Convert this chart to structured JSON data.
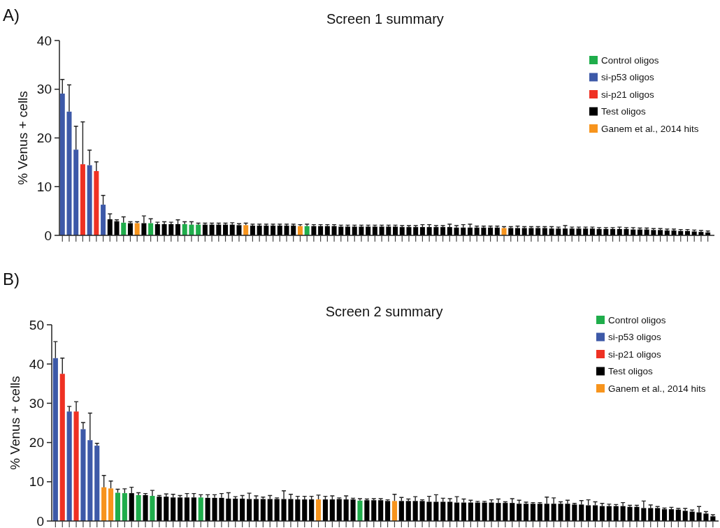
{
  "chart_data": [
    {
      "type": "bar",
      "title": "Screen 1 summary",
      "ylabel": "% Venus + cells",
      "annotations": [
        "A)"
      ],
      "legend": "top right",
      "ylim": [
        0,
        40
      ],
      "yticks": [
        0,
        10,
        20,
        30,
        40
      ],
      "categories": [
        null,
        null,
        null,
        null,
        null,
        null,
        null,
        null,
        null,
        null,
        null,
        null,
        null,
        null,
        null,
        null,
        null,
        null,
        null,
        null,
        null,
        null,
        null,
        null,
        null,
        null,
        null,
        null,
        null,
        null,
        null,
        null,
        null,
        null,
        null,
        null,
        null,
        null,
        null,
        null,
        null,
        null,
        null,
        null,
        null,
        null,
        null,
        null,
        null,
        null,
        null,
        null,
        null,
        null,
        null,
        null,
        null,
        null,
        null,
        null,
        null,
        null,
        null,
        null,
        null,
        null,
        null,
        null,
        null,
        null,
        null,
        null,
        null,
        null,
        null,
        null,
        null,
        null,
        null,
        null,
        null,
        null,
        null,
        null,
        null,
        null,
        null,
        null,
        null,
        null,
        null,
        null,
        null,
        null,
        null,
        null
      ],
      "series": [
        {
          "name": "Control oligos",
          "color": "#1fad4b",
          "values": [
            null,
            null,
            null,
            null,
            null,
            null,
            null,
            null,
            null,
            2.6,
            null,
            null,
            null,
            2.5,
            null,
            null,
            null,
            null,
            2.3,
            2.2,
            2.2,
            null,
            null,
            null,
            null,
            null,
            null,
            null,
            null,
            null,
            null,
            null,
            null,
            null,
            null,
            null,
            1.9,
            null,
            null,
            null,
            null,
            null,
            null,
            null,
            null,
            null,
            null,
            null,
            null,
            null,
            null,
            null,
            null,
            null,
            null,
            null,
            null,
            null,
            null,
            null,
            null,
            null,
            null,
            null,
            null,
            null,
            null,
            null,
            null,
            null,
            null,
            null,
            null,
            null,
            null,
            null,
            null,
            null,
            null,
            null,
            null,
            null,
            null,
            null,
            null,
            null,
            null,
            null,
            null,
            null,
            null,
            null,
            null,
            null,
            null,
            null
          ],
          "errors": [
            null,
            null,
            null,
            null,
            null,
            null,
            null,
            null,
            null,
            1.2,
            null,
            null,
            null,
            0.9,
            null,
            null,
            null,
            null,
            0.5,
            0.6,
            0.3,
            null,
            null,
            null,
            null,
            null,
            null,
            null,
            null,
            null,
            null,
            null,
            null,
            null,
            null,
            null,
            0.4,
            null,
            null,
            null,
            null,
            null,
            null,
            null,
            null,
            null,
            null,
            null,
            null,
            null,
            null,
            null,
            null,
            null,
            null,
            null,
            null,
            null,
            null,
            null,
            null,
            null,
            null,
            null,
            null,
            null,
            null,
            null,
            null,
            null,
            null,
            null,
            null,
            null,
            null,
            null,
            null,
            null,
            null,
            null,
            null,
            null,
            null,
            null,
            null,
            null,
            null,
            null,
            null,
            null,
            null,
            null,
            null,
            null,
            null,
            null
          ]
        },
        {
          "name": "si-p53 oligos",
          "color": "#3d59a8",
          "values": [
            29.1,
            25.4,
            17.6,
            null,
            14.4,
            null,
            6.3,
            null,
            null,
            null,
            null,
            null,
            null,
            null,
            null,
            null,
            null,
            null,
            null,
            null,
            null,
            null,
            null,
            null,
            null,
            null,
            null,
            null,
            null,
            null,
            null,
            null,
            null,
            null,
            null,
            null,
            null,
            null,
            null,
            null,
            null,
            null,
            null,
            null,
            null,
            null,
            null,
            null,
            null,
            null,
            null,
            null,
            null,
            null,
            null,
            null,
            null,
            null,
            null,
            null,
            null,
            null,
            null,
            null,
            null,
            null,
            null,
            null,
            null,
            null,
            null,
            null,
            null,
            null,
            null,
            null,
            null,
            null,
            null,
            null,
            null,
            null,
            null,
            null,
            null,
            null,
            null,
            null,
            null,
            null,
            null,
            null,
            null,
            null,
            null,
            null
          ],
          "errors": [
            2.9,
            5.5,
            4.8,
            null,
            3.1,
            null,
            1.9,
            null,
            null,
            null,
            null,
            null,
            null,
            null,
            null,
            null,
            null,
            null,
            null,
            null,
            null,
            null,
            null,
            null,
            null,
            null,
            null,
            null,
            null,
            null,
            null,
            null,
            null,
            null,
            null,
            null,
            null,
            null,
            null,
            null,
            null,
            null,
            null,
            null,
            null,
            null,
            null,
            null,
            null,
            null,
            null,
            null,
            null,
            null,
            null,
            null,
            null,
            null,
            null,
            null,
            null,
            null,
            null,
            null,
            null,
            null,
            null,
            null,
            null,
            null,
            null,
            null,
            null,
            null,
            null,
            null,
            null,
            null,
            null,
            null,
            null,
            null,
            null,
            null,
            null,
            null,
            null,
            null,
            null,
            null,
            null,
            null,
            null,
            null,
            null,
            null
          ]
        },
        {
          "name": "si-p21 oligos",
          "color": "#ef3123",
          "values": [
            null,
            null,
            null,
            14.6,
            null,
            13.2,
            null,
            null,
            null,
            null,
            null,
            null,
            null,
            null,
            null,
            null,
            null,
            null,
            null,
            null,
            null,
            null,
            null,
            null,
            null,
            null,
            null,
            null,
            null,
            null,
            null,
            null,
            null,
            null,
            null,
            null,
            null,
            null,
            null,
            null,
            null,
            null,
            null,
            null,
            null,
            null,
            null,
            null,
            null,
            null,
            null,
            null,
            null,
            null,
            null,
            null,
            null,
            null,
            null,
            null,
            null,
            null,
            null,
            null,
            null,
            null,
            null,
            null,
            null,
            null,
            null,
            null,
            null,
            null,
            null,
            null,
            null,
            null,
            null,
            null,
            null,
            null,
            null,
            null,
            null,
            null,
            null,
            null,
            null,
            null,
            null,
            null,
            null,
            null,
            null,
            null
          ],
          "errors": [
            null,
            null,
            null,
            8.7,
            null,
            1.9,
            null,
            null,
            null,
            null,
            null,
            null,
            null,
            null,
            null,
            null,
            null,
            null,
            null,
            null,
            null,
            null,
            null,
            null,
            null,
            null,
            null,
            null,
            null,
            null,
            null,
            null,
            null,
            null,
            null,
            null,
            null,
            null,
            null,
            null,
            null,
            null,
            null,
            null,
            null,
            null,
            null,
            null,
            null,
            null,
            null,
            null,
            null,
            null,
            null,
            null,
            null,
            null,
            null,
            null,
            null,
            null,
            null,
            null,
            null,
            null,
            null,
            null,
            null,
            null,
            null,
            null,
            null,
            null,
            null,
            null,
            null,
            null,
            null,
            null,
            null,
            null,
            null,
            null,
            null,
            null,
            null,
            null,
            null,
            null,
            null,
            null,
            null,
            null,
            null,
            null
          ]
        },
        {
          "name": "Test oligos",
          "color": "#000000",
          "values": [
            null,
            null,
            null,
            null,
            null,
            null,
            null,
            3.3,
            2.9,
            null,
            2.5,
            null,
            2.5,
            null,
            2.3,
            2.3,
            2.3,
            2.3,
            null,
            null,
            null,
            2.2,
            2.2,
            2.2,
            2.2,
            2.2,
            2.1,
            null,
            2.0,
            2.0,
            2.0,
            2.0,
            2.0,
            2.0,
            2.0,
            null,
            null,
            1.9,
            1.9,
            1.9,
            1.9,
            1.8,
            1.8,
            1.8,
            1.8,
            1.8,
            1.8,
            1.8,
            1.8,
            1.8,
            1.7,
            1.7,
            1.7,
            1.7,
            1.7,
            1.7,
            1.7,
            1.7,
            1.6,
            1.6,
            1.6,
            1.6,
            1.6,
            1.6,
            1.6,
            null,
            1.5,
            1.5,
            1.5,
            1.5,
            1.5,
            1.5,
            1.4,
            1.4,
            1.4,
            1.4,
            1.4,
            1.4,
            1.4,
            1.3,
            1.3,
            1.3,
            1.3,
            1.3,
            1.2,
            1.2,
            1.2,
            1.1,
            1.1,
            1.0,
            1.0,
            0.9,
            0.9,
            0.8,
            0.7,
            0.6
          ],
          "errors": [
            null,
            null,
            null,
            null,
            null,
            null,
            null,
            1.1,
            0.3,
            null,
            0.3,
            null,
            1.5,
            null,
            0.4,
            0.5,
            0.4,
            0.9,
            null,
            null,
            null,
            0.3,
            0.3,
            0.3,
            0.3,
            0.4,
            0.3,
            null,
            0.3,
            0.3,
            0.3,
            0.3,
            0.3,
            0.3,
            0.3,
            null,
            null,
            0.3,
            0.3,
            0.3,
            0.3,
            0.3,
            0.3,
            0.3,
            0.3,
            0.3,
            0.3,
            0.3,
            0.3,
            0.3,
            0.3,
            0.3,
            0.3,
            0.5,
            0.5,
            0.3,
            0.3,
            0.6,
            0.4,
            0.6,
            0.7,
            0.3,
            0.3,
            0.3,
            0.3,
            null,
            0.3,
            0.4,
            0.3,
            0.3,
            0.3,
            0.3,
            0.4,
            0.3,
            0.6,
            0.3,
            0.3,
            0.3,
            0.3,
            0.3,
            0.3,
            0.3,
            0.4,
            0.3,
            0.4,
            0.3,
            0.3,
            0.3,
            0.3,
            0.3,
            0.3,
            0.3,
            0.3,
            0.3,
            0.3,
            0.3
          ]
        },
        {
          "name": "Ganem et al., 2014 hits",
          "color": "#f7941d",
          "values": [
            null,
            null,
            null,
            null,
            null,
            null,
            null,
            null,
            null,
            null,
            null,
            2.5,
            null,
            null,
            null,
            null,
            null,
            null,
            null,
            null,
            null,
            null,
            null,
            null,
            null,
            null,
            null,
            2.1,
            null,
            null,
            null,
            null,
            null,
            null,
            null,
            1.9,
            null,
            null,
            null,
            null,
            null,
            null,
            null,
            null,
            null,
            null,
            null,
            null,
            null,
            null,
            null,
            null,
            null,
            null,
            null,
            null,
            null,
            null,
            null,
            null,
            null,
            null,
            null,
            null,
            null,
            1.5,
            null,
            null,
            null,
            null,
            null,
            null,
            null,
            null,
            null,
            null,
            null,
            null,
            null,
            null,
            null,
            null,
            null,
            null,
            null,
            null,
            null,
            null,
            null,
            null,
            null,
            null,
            null,
            null,
            null,
            null
          ],
          "errors": [
            null,
            null,
            null,
            null,
            null,
            null,
            null,
            null,
            null,
            null,
            null,
            0.3,
            null,
            null,
            null,
            null,
            null,
            null,
            null,
            null,
            null,
            null,
            null,
            null,
            null,
            null,
            null,
            0.4,
            null,
            null,
            null,
            null,
            null,
            null,
            null,
            0.3,
            null,
            null,
            null,
            null,
            null,
            null,
            null,
            null,
            null,
            null,
            null,
            null,
            null,
            null,
            null,
            null,
            null,
            null,
            null,
            null,
            null,
            null,
            null,
            null,
            null,
            null,
            null,
            null,
            null,
            0.3,
            null,
            null,
            null,
            null,
            null,
            null,
            null,
            null,
            null,
            null,
            null,
            null,
            null,
            null,
            null,
            null,
            null,
            null,
            null,
            null,
            null,
            null,
            null,
            null,
            null,
            null,
            null,
            null,
            null,
            null
          ]
        }
      ]
    },
    {
      "type": "bar",
      "title": "Screen 2 summary",
      "ylabel": "% Venus + cells",
      "annotations": [
        "B)"
      ],
      "legend": "top right",
      "ylim": [
        0,
        50
      ],
      "yticks": [
        0,
        10,
        20,
        30,
        40,
        50
      ],
      "categories": [
        null,
        null,
        null,
        null,
        null,
        null,
        null,
        null,
        null,
        null,
        null,
        null,
        null,
        null,
        null,
        null,
        null,
        null,
        null,
        null,
        null,
        null,
        null,
        null,
        null,
        null,
        null,
        null,
        null,
        null,
        null,
        null,
        null,
        null,
        null,
        null,
        null,
        null,
        null,
        null,
        null,
        null,
        null,
        null,
        null,
        null,
        null,
        null,
        null,
        null,
        null,
        null,
        null,
        null,
        null,
        null,
        null,
        null,
        null,
        null,
        null,
        null,
        null,
        null,
        null,
        null,
        null,
        null,
        null,
        null,
        null,
        null,
        null,
        null,
        null,
        null,
        null,
        null,
        null,
        null,
        null,
        null,
        null,
        null,
        null,
        null,
        null,
        null,
        null,
        null,
        null,
        null,
        null,
        null,
        null,
        null
      ],
      "series": [
        {
          "name": "Control oligos",
          "color": "#1fad4b",
          "values": [
            null,
            null,
            null,
            null,
            null,
            null,
            null,
            null,
            null,
            7.2,
            7.1,
            null,
            6.6,
            null,
            6.4,
            null,
            null,
            null,
            null,
            null,
            null,
            6.0,
            null,
            null,
            null,
            null,
            null,
            null,
            null,
            null,
            null,
            null,
            null,
            null,
            null,
            null,
            null,
            null,
            null,
            null,
            null,
            null,
            null,
            null,
            5.2,
            null,
            null,
            null,
            null,
            null,
            null,
            null,
            null,
            null,
            null,
            null,
            null,
            null,
            null,
            null,
            null,
            null,
            null,
            null,
            null,
            null,
            null,
            null,
            null,
            null,
            null,
            null,
            null,
            null,
            null,
            null,
            null,
            null,
            null,
            null,
            null,
            null,
            null,
            null,
            null,
            null,
            null,
            null,
            null,
            null,
            null,
            null,
            null,
            null,
            null,
            null
          ],
          "errors": [
            null,
            null,
            null,
            null,
            null,
            null,
            null,
            null,
            null,
            0.9,
            1.1,
            null,
            0.6,
            null,
            1.4,
            null,
            null,
            null,
            null,
            null,
            null,
            0.7,
            null,
            null,
            null,
            null,
            null,
            null,
            null,
            null,
            null,
            null,
            null,
            null,
            null,
            null,
            null,
            null,
            null,
            null,
            null,
            null,
            null,
            null,
            0.5,
            null,
            null,
            null,
            null,
            null,
            null,
            null,
            null,
            null,
            null,
            null,
            null,
            null,
            null,
            null,
            null,
            null,
            null,
            null,
            null,
            null,
            null,
            null,
            null,
            null,
            null,
            null,
            null,
            null,
            null,
            null,
            null,
            null,
            null,
            null,
            null,
            null,
            null,
            null,
            null,
            null,
            null,
            null,
            null,
            null,
            null,
            null,
            null,
            null,
            null,
            null
          ]
        },
        {
          "name": "si-p53 oligos",
          "color": "#3d59a8",
          "values": [
            41.5,
            null,
            27.9,
            null,
            23.4,
            20.6,
            19.2,
            null,
            null,
            null,
            null,
            null,
            null,
            null,
            null,
            null,
            null,
            null,
            null,
            null,
            null,
            null,
            null,
            null,
            null,
            null,
            null,
            null,
            null,
            null,
            null,
            null,
            null,
            null,
            null,
            null,
            null,
            null,
            null,
            null,
            null,
            null,
            null,
            null,
            null,
            null,
            null,
            null,
            null,
            null,
            null,
            null,
            null,
            null,
            null,
            null,
            null,
            null,
            null,
            null,
            null,
            null,
            null,
            null,
            null,
            null,
            null,
            null,
            null,
            null,
            null,
            null,
            null,
            null,
            null,
            null,
            null,
            null,
            null,
            null,
            null,
            null,
            null,
            null,
            null,
            null,
            null,
            null,
            null,
            null,
            null,
            null,
            null,
            null,
            null,
            null
          ],
          "errors": [
            4.2,
            null,
            1.3,
            null,
            1.7,
            6.9,
            0.6,
            null,
            null,
            null,
            null,
            null,
            null,
            null,
            null,
            null,
            null,
            null,
            null,
            null,
            null,
            null,
            null,
            null,
            null,
            null,
            null,
            null,
            null,
            null,
            null,
            null,
            null,
            null,
            null,
            null,
            null,
            null,
            null,
            null,
            null,
            null,
            null,
            null,
            null,
            null,
            null,
            null,
            null,
            null,
            null,
            null,
            null,
            null,
            null,
            null,
            null,
            null,
            null,
            null,
            null,
            null,
            null,
            null,
            null,
            null,
            null,
            null,
            null,
            null,
            null,
            null,
            null,
            null,
            null,
            null,
            null,
            null,
            null,
            null,
            null,
            null,
            null,
            null,
            null,
            null,
            null,
            null,
            null,
            null,
            null,
            null,
            null,
            null,
            null,
            null
          ]
        },
        {
          "name": "si-p21 oligos",
          "color": "#ef3123",
          "values": [
            null,
            37.5,
            null,
            27.9,
            null,
            null,
            null,
            null,
            null,
            null,
            null,
            null,
            null,
            null,
            null,
            null,
            null,
            null,
            null,
            null,
            null,
            null,
            null,
            null,
            null,
            null,
            null,
            null,
            null,
            null,
            null,
            null,
            null,
            null,
            null,
            null,
            null,
            null,
            null,
            null,
            null,
            null,
            null,
            null,
            null,
            null,
            null,
            null,
            null,
            null,
            null,
            null,
            null,
            null,
            null,
            null,
            null,
            null,
            null,
            null,
            null,
            null,
            null,
            null,
            null,
            null,
            null,
            null,
            null,
            null,
            null,
            null,
            null,
            null,
            null,
            null,
            null,
            null,
            null,
            null,
            null,
            null,
            null,
            null,
            null,
            null,
            null,
            null,
            null,
            null,
            null,
            null,
            null,
            null,
            null,
            null
          ],
          "errors": [
            null,
            4.0,
            null,
            2.5,
            null,
            null,
            null,
            null,
            null,
            null,
            null,
            null,
            null,
            null,
            null,
            null,
            null,
            null,
            null,
            null,
            null,
            null,
            null,
            null,
            null,
            null,
            null,
            null,
            null,
            null,
            null,
            null,
            null,
            null,
            null,
            null,
            null,
            null,
            null,
            null,
            null,
            null,
            null,
            null,
            null,
            null,
            null,
            null,
            null,
            null,
            null,
            null,
            null,
            null,
            null,
            null,
            null,
            null,
            null,
            null,
            null,
            null,
            null,
            null,
            null,
            null,
            null,
            null,
            null,
            null,
            null,
            null,
            null,
            null,
            null,
            null,
            null,
            null,
            null,
            null,
            null,
            null,
            null,
            null,
            null,
            null,
            null,
            null,
            null,
            null,
            null,
            null,
            null,
            null,
            null,
            null
          ]
        },
        {
          "name": "Test oligos",
          "color": "#000000",
          "values": [
            null,
            null,
            null,
            null,
            null,
            null,
            null,
            null,
            null,
            null,
            null,
            7.1,
            null,
            6.6,
            null,
            6.2,
            6.2,
            6.0,
            6.0,
            6.0,
            6.0,
            null,
            5.9,
            5.9,
            5.9,
            5.7,
            5.7,
            5.7,
            5.6,
            5.6,
            5.6,
            5.6,
            5.6,
            5.6,
            5.6,
            5.5,
            5.5,
            5.5,
            null,
            5.5,
            5.5,
            5.6,
            5.5,
            5.5,
            null,
            5.3,
            5.3,
            5.3,
            5.1,
            null,
            5.1,
            5.1,
            5.1,
            5.1,
            4.9,
            4.9,
            4.9,
            4.9,
            4.7,
            4.7,
            4.7,
            4.7,
            4.7,
            4.7,
            4.6,
            4.6,
            4.6,
            4.4,
            4.4,
            4.4,
            4.4,
            4.4,
            4.4,
            4.4,
            4.4,
            4.2,
            4.2,
            4.0,
            4.0,
            3.8,
            3.8,
            3.8,
            3.8,
            3.6,
            3.6,
            3.3,
            3.3,
            3.3,
            3.0,
            3.0,
            2.9,
            2.6,
            2.4,
            2.2,
            1.9,
            1.2
          ],
          "errors": [
            null,
            null,
            null,
            null,
            null,
            null,
            null,
            null,
            null,
            null,
            null,
            1.5,
            null,
            0.4,
            null,
            0.3,
            0.7,
            0.8,
            0.5,
            1.0,
            1.0,
            null,
            0.8,
            0.8,
            1.1,
            1.5,
            0.5,
            0.8,
            1.5,
            0.8,
            0.5,
            0.9,
            0.3,
            2.1,
            1.2,
            0.8,
            0.8,
            0.8,
            null,
            0.8,
            0.9,
            0.3,
            0.9,
            0.3,
            null,
            0.3,
            0.4,
            0.4,
            0.3,
            null,
            0.9,
            0.5,
            1.1,
            0.3,
            1.4,
            1.8,
            0.9,
            0.8,
            1.5,
            0.9,
            0.6,
            0.3,
            0.3,
            0.7,
            1.0,
            0.3,
            1.1,
            0.9,
            0.4,
            0.3,
            0.3,
            1.7,
            1.5,
            0.5,
            0.9,
            0.3,
            1.0,
            1.4,
            0.9,
            0.7,
            0.5,
            0.4,
            0.9,
            0.4,
            0.4,
            1.8,
            0.8,
            0.4,
            0.3,
            0.5,
            0.3,
            0.6,
            0.4,
            1.5,
            0.5,
            0.4
          ]
        },
        {
          "name": "Ganem et al., 2014 hits",
          "color": "#f7941d",
          "values": [
            null,
            null,
            null,
            null,
            null,
            null,
            null,
            8.6,
            8.3,
            null,
            null,
            null,
            null,
            null,
            null,
            null,
            null,
            null,
            null,
            null,
            null,
            null,
            null,
            null,
            null,
            null,
            null,
            null,
            null,
            null,
            null,
            null,
            null,
            null,
            null,
            null,
            null,
            null,
            5.5,
            null,
            null,
            null,
            null,
            null,
            null,
            null,
            null,
            null,
            null,
            5.1,
            null,
            null,
            null,
            null,
            null,
            null,
            null,
            null,
            null,
            null,
            null,
            null,
            null,
            null,
            null,
            null,
            null,
            null,
            null,
            null,
            null,
            null,
            null,
            null,
            null,
            null,
            null,
            null,
            null,
            null,
            null,
            null,
            null,
            null,
            null,
            null,
            null,
            null,
            null,
            null,
            null,
            null,
            null,
            null,
            null,
            null
          ],
          "errors": [
            null,
            null,
            null,
            null,
            null,
            null,
            null,
            3.0,
            1.9,
            null,
            null,
            null,
            null,
            null,
            null,
            null,
            null,
            null,
            null,
            null,
            null,
            null,
            null,
            null,
            null,
            null,
            null,
            null,
            null,
            null,
            null,
            null,
            null,
            null,
            null,
            null,
            null,
            null,
            1.1,
            null,
            null,
            null,
            null,
            null,
            null,
            null,
            null,
            null,
            null,
            1.7,
            null,
            null,
            null,
            null,
            null,
            null,
            null,
            null,
            null,
            null,
            null,
            null,
            null,
            null,
            null,
            null,
            null,
            null,
            null,
            null,
            null,
            null,
            null,
            null,
            null,
            null,
            null,
            null,
            null,
            null,
            null,
            null,
            null,
            null,
            null,
            null,
            null,
            null,
            null,
            null,
            null,
            null,
            null,
            null,
            null,
            null
          ]
        }
      ]
    }
  ]
}
